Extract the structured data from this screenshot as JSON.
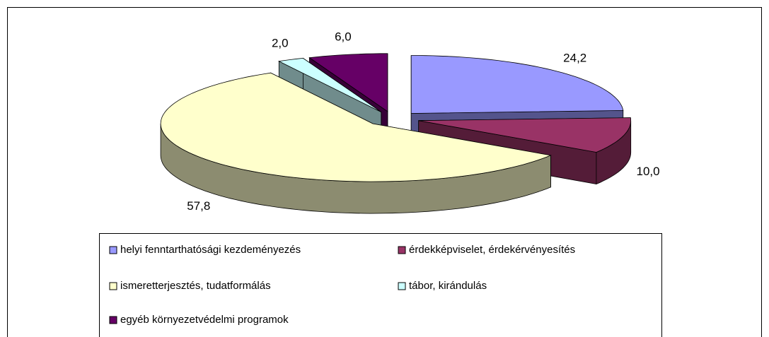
{
  "chart_data": {
    "type": "pie",
    "categories": [
      "helyi fenntarthatósági kezdeményezés",
      "érdekképviselet, érdekérvényesítés",
      "ismeretterjesztés, tudatformálás",
      "tábor, kirándulás",
      "egyéb környezetvédelmi programok"
    ],
    "values": [
      24.2,
      10.0,
      57.8,
      2.0,
      6.0
    ],
    "value_labels": [
      "24,2",
      "10,0",
      "57,8",
      "2,0",
      "6,0"
    ],
    "colors": [
      "#9999ff",
      "#993366",
      "#ffffcc",
      "#ccffff",
      "#660066"
    ],
    "legend": "bottom"
  }
}
